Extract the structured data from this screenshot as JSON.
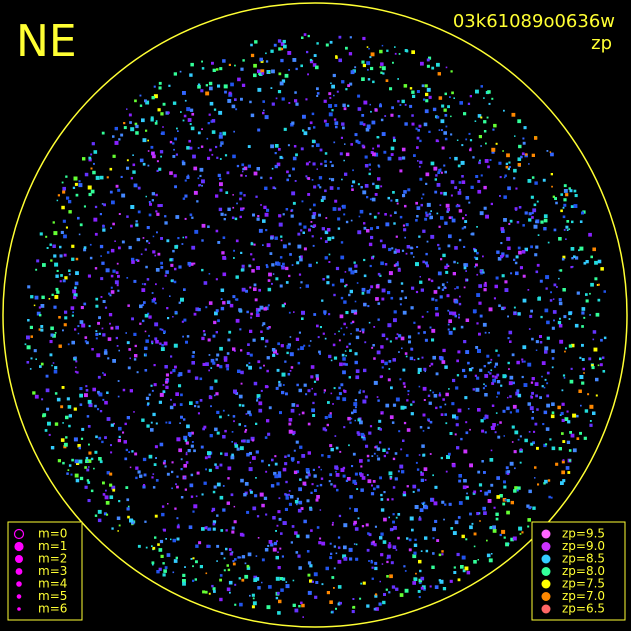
{
  "header": {
    "direction": "NE",
    "frame_id": "03k61089o0636w",
    "color_key": "zp"
  },
  "magnitude_legend": {
    "items": [
      {
        "label": "m=0",
        "size": 4.5,
        "hollow": true
      },
      {
        "label": "m=1",
        "size": 4
      },
      {
        "label": "m=2",
        "size": 3.4
      },
      {
        "label": "m=3",
        "size": 2.8
      },
      {
        "label": "m=4",
        "size": 2.2
      },
      {
        "label": "m=5",
        "size": 1.7
      },
      {
        "label": "m=6",
        "size": 1.2
      }
    ]
  },
  "zp_legend": {
    "items": [
      {
        "label": "zp=9.5",
        "color": "#ff66ff"
      },
      {
        "label": "zp=9.0",
        "color": "#cc33ff"
      },
      {
        "label": "zp=8.5",
        "color": "#33ccff"
      },
      {
        "label": "zp=8.0",
        "color": "#33ff99"
      },
      {
        "label": "zp=7.5",
        "color": "#ffff00"
      },
      {
        "label": "zp=7.0",
        "color": "#ff8800"
      },
      {
        "label": "zp=6.5",
        "color": "#ff6666"
      }
    ]
  }
}
